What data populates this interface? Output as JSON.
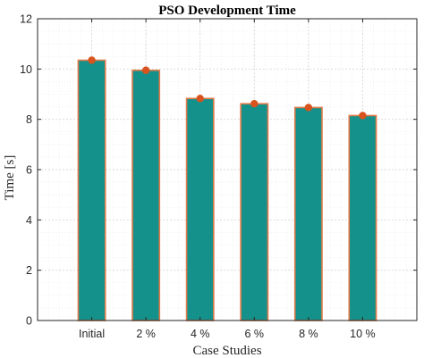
{
  "chart_data": {
    "type": "bar",
    "title": "PSO Development Time",
    "xlabel": "Case Studies",
    "ylabel": "Time [s]",
    "categories": [
      "Initial",
      "2 %",
      "4 %",
      "6 %",
      "8 %",
      "10 %"
    ],
    "values": [
      10.35,
      9.95,
      8.83,
      8.62,
      8.47,
      8.15
    ],
    "ylim": [
      0,
      12
    ],
    "yticks": [
      "0",
      "2",
      "4",
      "6",
      "8",
      "10",
      "12"
    ],
    "grid": true,
    "minor_grid": true,
    "markers": true,
    "colors": {
      "bar_fill": "#14918a",
      "bar_edge": "#e07b4a",
      "marker": "#d9531e"
    }
  }
}
